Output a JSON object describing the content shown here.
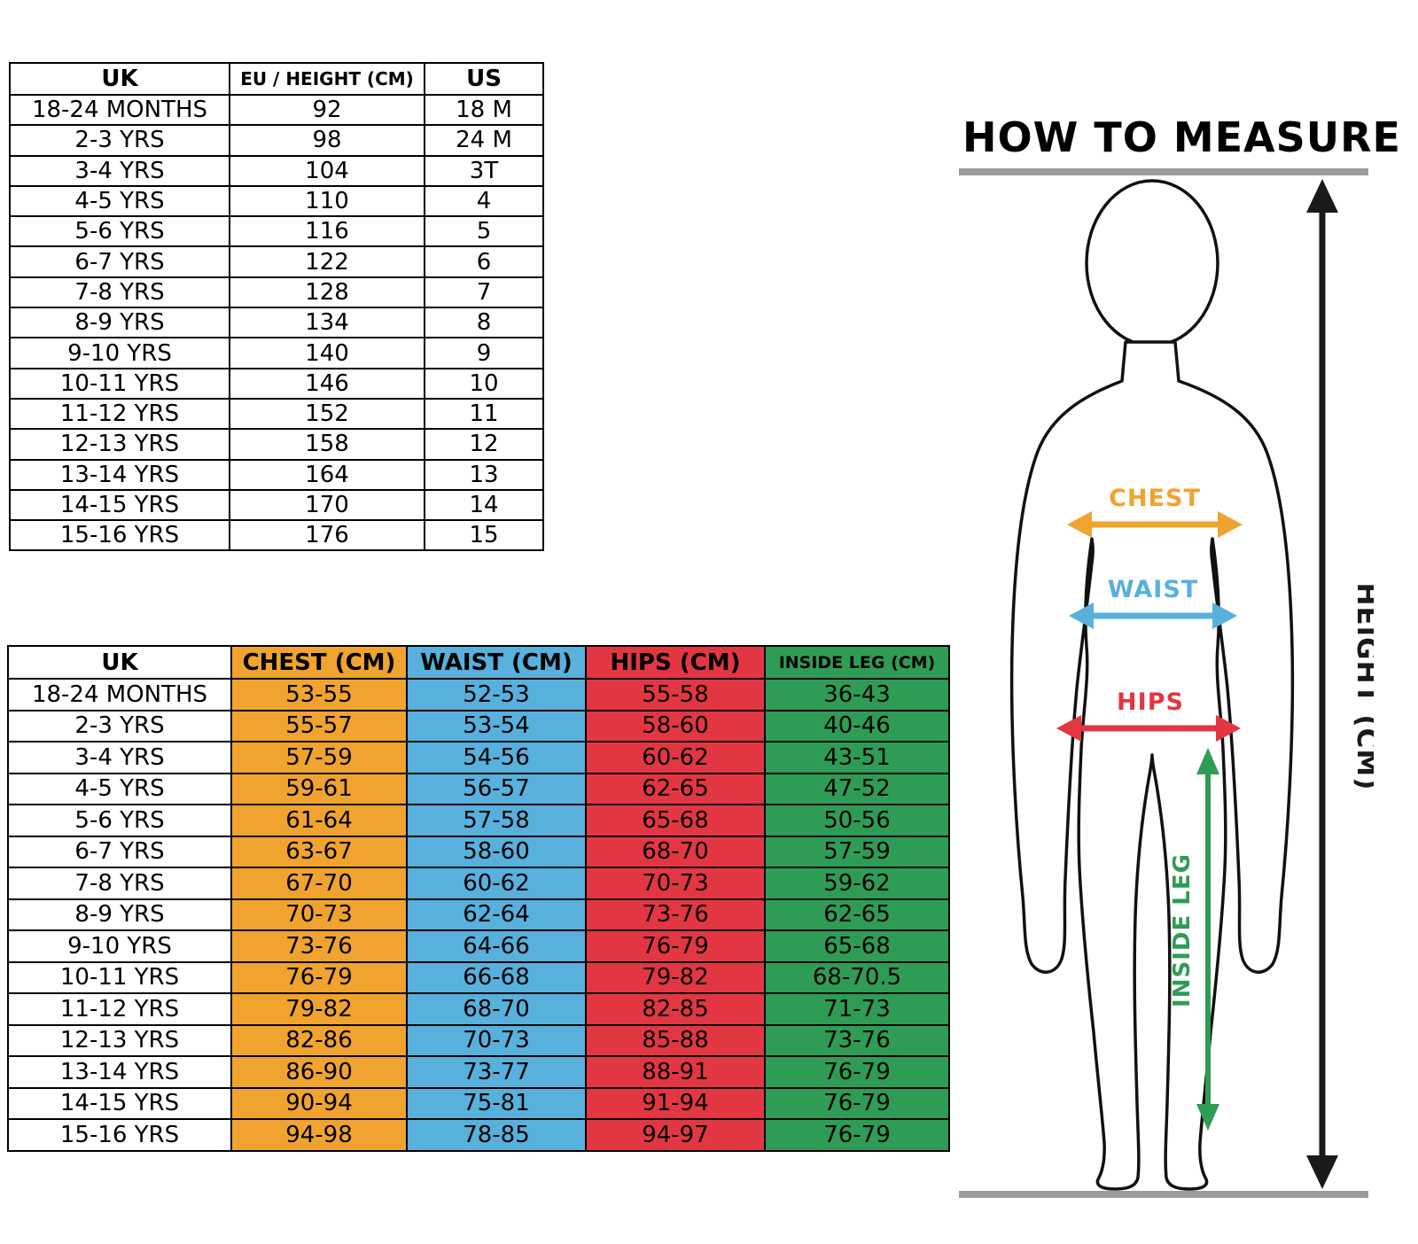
{
  "size_table": {
    "headers": [
      "UK",
      "EU / HEIGHT (CM)",
      "US"
    ],
    "rows": [
      [
        "18-24 MONTHS",
        "92",
        "18 M"
      ],
      [
        "2-3 YRS",
        "98",
        "24 M"
      ],
      [
        "3-4 YRS",
        "104",
        "3T"
      ],
      [
        "4-5 YRS",
        "110",
        "4"
      ],
      [
        "5-6 YRS",
        "116",
        "5"
      ],
      [
        "6-7 YRS",
        "122",
        "6"
      ],
      [
        "7-8 YRS",
        "128",
        "7"
      ],
      [
        "8-9 YRS",
        "134",
        "8"
      ],
      [
        "9-10 YRS",
        "140",
        "9"
      ],
      [
        "10-11 YRS",
        "146",
        "10"
      ],
      [
        "11-12 YRS",
        "152",
        "11"
      ],
      [
        "12-13 YRS",
        "158",
        "12"
      ],
      [
        "13-14 YRS",
        "164",
        "13"
      ],
      [
        "14-15 YRS",
        "170",
        "14"
      ],
      [
        "15-16 YRS",
        "176",
        "15"
      ]
    ]
  },
  "measurement_table": {
    "headers": [
      "UK",
      "CHEST (CM)",
      "WAIST (CM)",
      "HIPS (CM)",
      "INSIDE LEG (CM)"
    ],
    "rows": [
      [
        "18-24 MONTHS",
        "53-55",
        "52-53",
        "55-58",
        "36-43"
      ],
      [
        "2-3 YRS",
        "55-57",
        "53-54",
        "58-60",
        "40-46"
      ],
      [
        "3-4 YRS",
        "57-59",
        "54-56",
        "60-62",
        "43-51"
      ],
      [
        "4-5 YRS",
        "59-61",
        "56-57",
        "62-65",
        "47-52"
      ],
      [
        "5-6 YRS",
        "61-64",
        "57-58",
        "65-68",
        "50-56"
      ],
      [
        "6-7 YRS",
        "63-67",
        "58-60",
        "68-70",
        "57-59"
      ],
      [
        "7-8 YRS",
        "67-70",
        "60-62",
        "70-73",
        "59-62"
      ],
      [
        "8-9 YRS",
        "70-73",
        "62-64",
        "73-76",
        "62-65"
      ],
      [
        "9-10 YRS",
        "73-76",
        "64-66",
        "76-79",
        "65-68"
      ],
      [
        "10-11 YRS",
        "76-79",
        "66-68",
        "79-82",
        "68-70.5"
      ],
      [
        "11-12 YRS",
        "79-82",
        "68-70",
        "82-85",
        "71-73"
      ],
      [
        "12-13 YRS",
        "82-86",
        "70-73",
        "85-88",
        "73-76"
      ],
      [
        "13-14 YRS",
        "86-90",
        "73-77",
        "88-91",
        "76-79"
      ],
      [
        "14-15 YRS",
        "90-94",
        "75-81",
        "91-94",
        "76-79"
      ],
      [
        "15-16 YRS",
        "94-98",
        "78-85",
        "94-97",
        "76-79"
      ]
    ]
  },
  "how_to_measure": {
    "title": "HOW TO MEASURE",
    "chest_label": "CHEST",
    "waist_label": "WAIST",
    "hips_label": "HIPS",
    "inside_leg_label": "INSIDE LEG",
    "height_label": "HEIGHT (CM)"
  },
  "colors": {
    "chest": "#F0A32F",
    "waist": "#58B0DC",
    "hips": "#E23742",
    "inside_leg": "#2F9C55",
    "height_arrow": "#1a1a1a",
    "rule": "#9c9c9c"
  }
}
